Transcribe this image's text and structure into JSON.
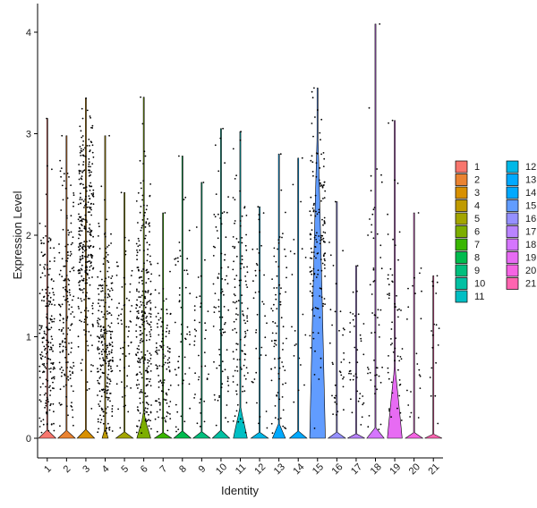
{
  "chart_data": {
    "type": "violin",
    "xlabel": "Identity",
    "ylabel": "Expression Level",
    "ylim": [
      -0.2,
      4.2
    ],
    "yticks": [
      0,
      1,
      2,
      3,
      4
    ],
    "categories": [
      "1",
      "2",
      "3",
      "4",
      "5",
      "6",
      "7",
      "8",
      "9",
      "10",
      "11",
      "12",
      "13",
      "14",
      "15",
      "16",
      "17",
      "18",
      "19",
      "20",
      "21"
    ],
    "series": [
      {
        "name": "1",
        "color": "#F8766D",
        "max": 3.15,
        "density": 10,
        "center": 0.9,
        "spread": 0.7,
        "violin_width": 0,
        "violin_top": 0
      },
      {
        "name": "2",
        "color": "#EA8331",
        "max": 2.98,
        "density": 8,
        "center": 1.2,
        "spread": 0.7,
        "violin_width": 0,
        "violin_top": 0
      },
      {
        "name": "3",
        "color": "#D89000",
        "max": 3.35,
        "density": 14,
        "center": 2.0,
        "spread": 0.6,
        "violin_width": 0,
        "violin_top": 0
      },
      {
        "name": "4",
        "color": "#C09B00",
        "max": 2.98,
        "density": 14,
        "center": 0.7,
        "spread": 0.7,
        "violin_width": 0.35,
        "violin_top": 0.1
      },
      {
        "name": "5",
        "color": "#A3A500",
        "max": 2.42,
        "density": 3,
        "center": 0.9,
        "spread": 0.6,
        "violin_width": 0,
        "violin_top": 0
      },
      {
        "name": "6",
        "color": "#7CAE00",
        "max": 3.36,
        "density": 14,
        "center": 1.0,
        "spread": 0.8,
        "violin_width": 0.8,
        "violin_top": 0.22
      },
      {
        "name": "7",
        "color": "#39B600",
        "max": 2.22,
        "density": 6,
        "center": 0.6,
        "spread": 0.5,
        "violin_width": 0,
        "violin_top": 0
      },
      {
        "name": "8",
        "color": "#00BB4E",
        "max": 2.78,
        "density": 3,
        "center": 1.0,
        "spread": 0.8,
        "violin_width": 0,
        "violin_top": 0
      },
      {
        "name": "9",
        "color": "#00BF7D",
        "max": 2.52,
        "density": 2,
        "center": 0.8,
        "spread": 0.7,
        "violin_width": 0,
        "violin_top": 0
      },
      {
        "name": "10",
        "color": "#00C1A3",
        "max": 3.05,
        "density": 4,
        "center": 1.3,
        "spread": 0.8,
        "violin_width": 0,
        "violin_top": 0
      },
      {
        "name": "11",
        "color": "#00BFC4",
        "max": 3.02,
        "density": 6,
        "center": 1.1,
        "spread": 0.8,
        "violin_width": 0.8,
        "violin_top": 0.3
      },
      {
        "name": "12",
        "color": "#00B8E7",
        "max": 2.28,
        "density": 2,
        "center": 1.2,
        "spread": 0.7,
        "violin_width": 0,
        "violin_top": 0
      },
      {
        "name": "13",
        "color": "#00A9FF",
        "max": 2.8,
        "density": 4,
        "center": 0.9,
        "spread": 0.7,
        "violin_width": 0.75,
        "violin_top": 0.14
      },
      {
        "name": "14",
        "color": "#00A9FF",
        "max": 2.76,
        "density": 1,
        "center": 1.0,
        "spread": 0.8,
        "violin_width": 0,
        "violin_top": 0
      },
      {
        "name": "15",
        "color": "#619CFF",
        "max": 3.45,
        "density": 7,
        "center": 1.9,
        "spread": 0.6,
        "violin_width": 0.9,
        "violin_top": 3.1
      },
      {
        "name": "16",
        "color": "#9590FF",
        "max": 2.33,
        "density": 2,
        "center": 0.8,
        "spread": 0.6,
        "violin_width": 0,
        "violin_top": 0
      },
      {
        "name": "17",
        "color": "#B983FF",
        "max": 1.7,
        "density": 2,
        "center": 0.7,
        "spread": 0.5,
        "violin_width": 0,
        "violin_top": 0
      },
      {
        "name": "18",
        "color": "#D575FE",
        "max": 4.08,
        "density": 3,
        "center": 1.0,
        "spread": 0.9,
        "violin_width": 0,
        "violin_top": 0
      },
      {
        "name": "19",
        "color": "#E76BF3",
        "max": 3.13,
        "density": 3,
        "center": 1.1,
        "spread": 0.8,
        "violin_width": 0.85,
        "violin_top": 0.7
      },
      {
        "name": "20",
        "color": "#F564E3",
        "max": 2.22,
        "density": 1,
        "center": 1.0,
        "spread": 0.7,
        "violin_width": 0,
        "violin_top": 0
      },
      {
        "name": "21",
        "color": "#FF64B0",
        "max": 1.6,
        "density": 1,
        "center": 0.8,
        "spread": 0.6,
        "violin_width": 0,
        "violin_top": 0
      }
    ],
    "legend_position": "right",
    "grid": false
  }
}
